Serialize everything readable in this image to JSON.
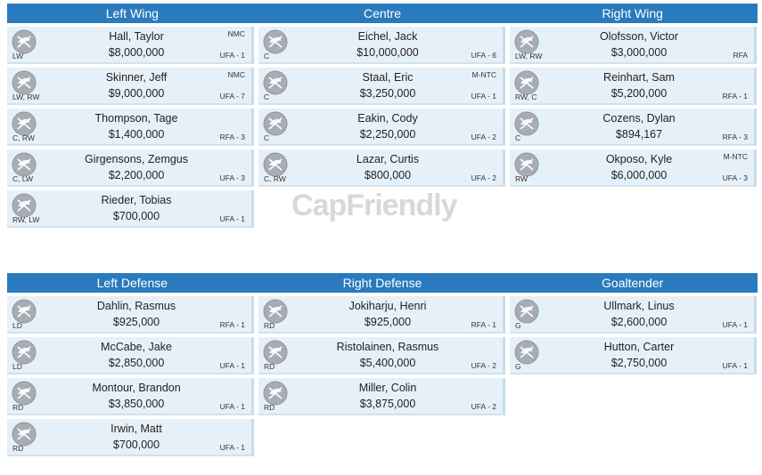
{
  "colors": {
    "header": "#2a7bbd",
    "card": "#e6f0f8",
    "logo": "#a8adb5"
  },
  "watermark": "CapFriendly",
  "forwards": {
    "headers": [
      "Left Wing",
      "Centre",
      "Right Wing"
    ],
    "columns": [
      [
        {
          "name": "Hall, Taylor",
          "cap": "$8,000,000",
          "pos": "LW",
          "clause": "NMC",
          "status": "UFA - 1"
        },
        {
          "name": "Skinner, Jeff",
          "cap": "$9,000,000",
          "pos": "LW, RW",
          "clause": "NMC",
          "status": "UFA - 7"
        },
        {
          "name": "Thompson, Tage",
          "cap": "$1,400,000",
          "pos": "C, RW",
          "clause": "",
          "status": "RFA - 3"
        },
        {
          "name": "Girgensons, Zemgus",
          "cap": "$2,200,000",
          "pos": "C, LW",
          "clause": "",
          "status": "UFA - 3"
        },
        {
          "name": "Rieder, Tobias",
          "cap": "$700,000",
          "pos": "RW, LW",
          "clause": "",
          "status": "UFA - 1"
        }
      ],
      [
        {
          "name": "Eichel, Jack",
          "cap": "$10,000,000",
          "pos": "C",
          "clause": "",
          "status": "UFA - 6"
        },
        {
          "name": "Staal, Eric",
          "cap": "$3,250,000",
          "pos": "C",
          "clause": "M-NTC",
          "status": "UFA - 1"
        },
        {
          "name": "Eakin, Cody",
          "cap": "$2,250,000",
          "pos": "C",
          "clause": "",
          "status": "UFA - 2"
        },
        {
          "name": "Lazar, Curtis",
          "cap": "$800,000",
          "pos": "C, RW",
          "clause": "",
          "status": "UFA - 2"
        }
      ],
      [
        {
          "name": "Olofsson, Victor",
          "cap": "$3,000,000",
          "pos": "LW, RW",
          "clause": "",
          "status": "RFA"
        },
        {
          "name": "Reinhart, Sam",
          "cap": "$5,200,000",
          "pos": "RW, C",
          "clause": "",
          "status": "RFA - 1"
        },
        {
          "name": "Cozens, Dylan",
          "cap": "$894,167",
          "pos": "C",
          "clause": "",
          "status": "RFA - 3"
        },
        {
          "name": "Okposo, Kyle",
          "cap": "$6,000,000",
          "pos": "RW",
          "clause": "M-NTC",
          "status": "UFA - 3"
        }
      ]
    ]
  },
  "defense": {
    "headers": [
      "Left Defense",
      "Right Defense",
      "Goaltender"
    ],
    "columns": [
      [
        {
          "name": "Dahlin, Rasmus",
          "cap": "$925,000",
          "pos": "LD",
          "clause": "",
          "status": "RFA - 1"
        },
        {
          "name": "McCabe, Jake",
          "cap": "$2,850,000",
          "pos": "LD",
          "clause": "",
          "status": "UFA - 1"
        },
        {
          "name": "Montour, Brandon",
          "cap": "$3,850,000",
          "pos": "RD",
          "clause": "",
          "status": "UFA - 1"
        },
        {
          "name": "Irwin, Matt",
          "cap": "$700,000",
          "pos": "RD",
          "clause": "",
          "status": "UFA - 1"
        }
      ],
      [
        {
          "name": "Jokiharju, Henri",
          "cap": "$925,000",
          "pos": "RD",
          "clause": "",
          "status": "RFA - 1"
        },
        {
          "name": "Ristolainen, Rasmus",
          "cap": "$5,400,000",
          "pos": "RD",
          "clause": "",
          "status": "UFA - 2"
        },
        {
          "name": "Miller, Colin",
          "cap": "$3,875,000",
          "pos": "RD",
          "clause": "",
          "status": "UFA - 2"
        }
      ],
      [
        {
          "name": "Ullmark, Linus",
          "cap": "$2,600,000",
          "pos": "G",
          "clause": "",
          "status": "UFA - 1"
        },
        {
          "name": "Hutton, Carter",
          "cap": "$2,750,000",
          "pos": "G",
          "clause": "",
          "status": "UFA - 1"
        }
      ]
    ]
  }
}
